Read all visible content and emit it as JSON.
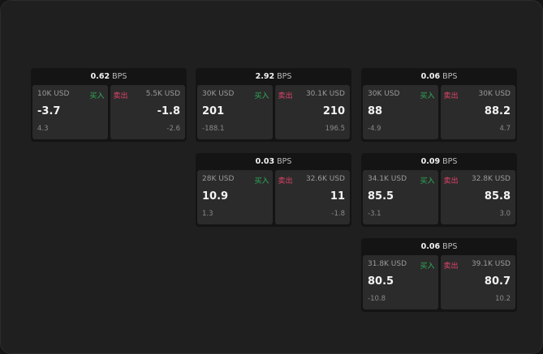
{
  "labels": {
    "buy": "买入",
    "sell": "卖出",
    "unit": "BPS"
  },
  "colors": {
    "buy": "#2fae5a",
    "sell": "#e0436b"
  },
  "quotes": [
    {
      "spread": "0.62",
      "bid_size": "10K USD",
      "bid": "-3.7",
      "bid_change": "4.3",
      "ask_size": "5.5K USD",
      "ask": "-1.8",
      "ask_change": "-2.6"
    },
    {
      "spread": "2.92",
      "bid_size": "30K USD",
      "bid": "201",
      "bid_change": "-188.1",
      "ask_size": "30.1K USD",
      "ask": "210",
      "ask_change": "196.5"
    },
    {
      "spread": "0.06",
      "bid_size": "30K USD",
      "bid": "88",
      "bid_change": "-4.9",
      "ask_size": "30K USD",
      "ask": "88.2",
      "ask_change": "4.7"
    },
    {
      "spread": "0.03",
      "bid_size": "28K USD",
      "bid": "10.9",
      "bid_change": "1.3",
      "ask_size": "32.6K USD",
      "ask": "11",
      "ask_change": "-1.8"
    },
    {
      "spread": "0.09",
      "bid_size": "34.1K USD",
      "bid": "85.5",
      "bid_change": "-3.1",
      "ask_size": "32.8K USD",
      "ask": "85.8",
      "ask_change": "3.0"
    },
    {
      "spread": "0.06",
      "bid_size": "31.8K USD",
      "bid": "80.5",
      "bid_change": "-10.8",
      "ask_size": "39.1K USD",
      "ask": "80.7",
      "ask_change": "10.2"
    }
  ]
}
